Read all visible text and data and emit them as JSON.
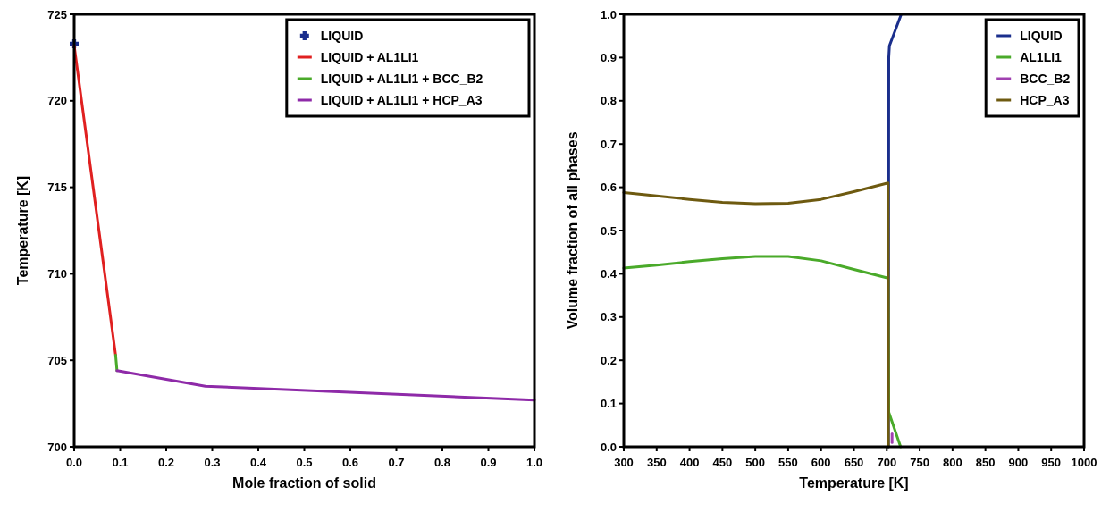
{
  "chart_data": [
    {
      "type": "line",
      "xlabel": "Mole fraction of solid",
      "ylabel": "Temperature [K]",
      "xlim": [
        0,
        1
      ],
      "ylim": [
        700,
        725
      ],
      "xticks": [
        {
          "value": 0,
          "label": "0.0"
        },
        0.1,
        0.2,
        0.3,
        0.4,
        0.5,
        0.6,
        0.7,
        0.8,
        0.9,
        {
          "value": 1,
          "label": "1.0"
        }
      ],
      "yticks": [
        700,
        705,
        710,
        715,
        720,
        725
      ],
      "grid": false,
      "legend": "top right",
      "series": [
        {
          "name": "LIQUID",
          "type": "scatter",
          "marker": "cross",
          "color": "#1a2e8c",
          "x": [
            0
          ],
          "values": [
            723.3
          ]
        },
        {
          "name": "LIQUID + AL1LI1",
          "color": "#e02020",
          "x": [
            0,
            0.09
          ],
          "values": [
            723.2,
            705.3
          ]
        },
        {
          "name": "LIQUID + AL1LI1 + BCC_B2",
          "color": "#4aaa2a",
          "x": [
            0.09,
            0.093
          ],
          "values": [
            705.3,
            704.4
          ]
        },
        {
          "name": "LIQUID + AL1LI1 + HCP_A3",
          "color": "#8e2aa8",
          "x": [
            0.093,
            0.285,
            1
          ],
          "values": [
            704.4,
            703.5,
            702.7
          ]
        }
      ]
    },
    {
      "type": "line",
      "xlabel": "Temperature [K]",
      "ylabel": "Volume fraction of all phases",
      "xlim": [
        300,
        1000
      ],
      "ylim": [
        0,
        1
      ],
      "xticks": [
        300,
        350,
        400,
        450,
        500,
        550,
        600,
        650,
        700,
        750,
        800,
        850,
        900,
        950,
        1000
      ],
      "yticks": [
        {
          "value": 0,
          "label": "0.0"
        },
        0.1,
        0.2,
        0.3,
        0.4,
        0.5,
        0.6,
        0.7,
        0.8,
        0.9,
        {
          "value": 1,
          "label": "1.0"
        }
      ],
      "grid": false,
      "legend": "top right",
      "series": [
        {
          "name": "LIQUID",
          "color": "#1a2e8c",
          "x": [
            702.5,
            703,
            704,
            722
          ],
          "values": [
            0,
            0.9,
            0.927,
            1
          ]
        },
        {
          "name": "AL1LI1",
          "color": "#4aaa2a",
          "x": [
            300,
            350,
            400,
            450,
            500,
            550,
            600,
            650,
            702,
            703,
            721
          ],
          "values": [
            0.413,
            0.42,
            0.428,
            0.435,
            0.44,
            0.44,
            0.43,
            0.41,
            0.39,
            0.08,
            0
          ]
        },
        {
          "name": "BCC_B2",
          "color": "#a040b0",
          "x": [
            708,
            708
          ],
          "values": [
            0.01,
            0.03
          ]
        },
        {
          "name": "HCP_A3",
          "color": "#6e5a10",
          "x": [
            300,
            350,
            400,
            450,
            500,
            550,
            600,
            650,
            702,
            702.5
          ],
          "values": [
            0.588,
            0.58,
            0.572,
            0.565,
            0.562,
            0.563,
            0.572,
            0.59,
            0.61,
            0
          ]
        }
      ]
    }
  ]
}
